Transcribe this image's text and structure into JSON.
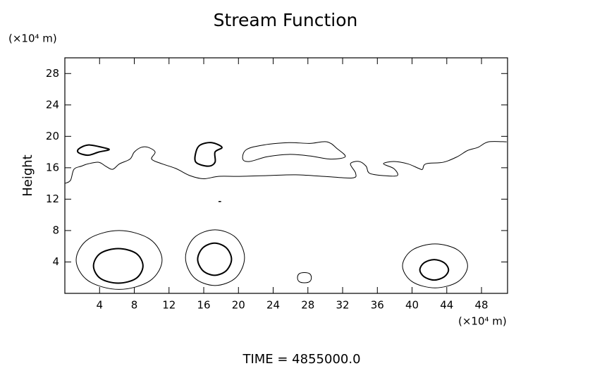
{
  "chart_data": {
    "type": "contour",
    "title": "Stream Function",
    "y_unit": "(×10⁴ m)",
    "y_label": "Height",
    "x_unit": "(×10⁴ m)",
    "footer": "TIME = 4855000.0",
    "xlim": [
      0,
      51
    ],
    "ylim": [
      0,
      30
    ],
    "xticks": [
      4,
      8,
      12,
      16,
      20,
      24,
      28,
      32,
      36,
      40,
      44,
      48
    ],
    "yticks": [
      4,
      8,
      12,
      16,
      20,
      24,
      28
    ],
    "color": "#000000",
    "contours": [
      {
        "closed": false,
        "width": 1,
        "x": [
          0,
          0.65,
          1.05,
          1.9,
          2.7,
          3.9,
          4.7,
          5.5,
          6.3,
          7.5,
          8.0,
          8.8,
          9.6,
          10.4,
          10.0,
          11.2,
          12.8,
          14.4,
          16.0,
          17.7,
          20.1,
          23.3,
          26.6,
          29.8,
          33.1,
          33.5,
          32.9,
          33.9,
          34.7,
          35.1,
          36.7,
          38.3,
          37.9,
          36.7,
          37.9,
          39.5,
          40.8,
          41.2,
          41.6,
          43.6,
          45.2,
          46.4,
          47.6,
          48.8,
          50.9
        ],
        "y": [
          14.0,
          14.4,
          15.8,
          16.2,
          16.5,
          16.7,
          16.2,
          15.8,
          16.5,
          17.1,
          18.0,
          18.6,
          18.6,
          18.0,
          17.1,
          16.5,
          15.9,
          15.0,
          14.6,
          14.9,
          14.9,
          15.0,
          15.1,
          14.9,
          14.7,
          15.3,
          16.5,
          16.8,
          16.2,
          15.3,
          15.0,
          15.0,
          15.9,
          16.5,
          16.8,
          16.5,
          15.9,
          15.8,
          16.5,
          16.7,
          17.4,
          18.2,
          18.6,
          19.3,
          19.3
        ]
      },
      {
        "closed": true,
        "width": 1,
        "x": [
          20.5,
          20.9,
          22.9,
          25.8,
          28.2,
          30.2,
          31.4,
          32.3,
          30.6,
          28.2,
          25.8,
          23.3,
          21.3
        ],
        "y": [
          17.1,
          18.3,
          18.9,
          19.2,
          19.1,
          19.3,
          18.4,
          17.4,
          17.1,
          17.5,
          17.7,
          17.4,
          16.8
        ]
      },
      {
        "closed": true,
        "width": 2,
        "x": [
          1.6,
          2.7,
          4.3,
          5.1,
          3.9,
          2.7,
          1.6
        ],
        "y": [
          18.4,
          18.9,
          18.6,
          18.3,
          18.0,
          17.6,
          17.9
        ]
      },
      {
        "closed": true,
        "width": 2,
        "x": [
          15.1,
          15.6,
          16.9,
          18.1,
          17.3,
          17.3,
          16.5,
          15.1
        ],
        "y": [
          18.0,
          18.9,
          19.2,
          18.6,
          18.0,
          16.7,
          16.2,
          16.7
        ]
      },
      {
        "closed": false,
        "width": 1.5,
        "x": [
          17.7,
          18.0
        ],
        "y": [
          11.7,
          11.7
        ]
      },
      {
        "closed": true,
        "width": 1,
        "x": [
          11.2,
          9.8,
          6.25,
          2.7,
          1.3,
          2.7,
          6.25,
          9.8
        ],
        "y": [
          4.25,
          6.9,
          8.0,
          6.9,
          4.25,
          1.6,
          0.5,
          1.6
        ]
      },
      {
        "closed": true,
        "width": 2,
        "x": [
          9.0,
          8.2,
          6.15,
          4.1,
          3.3,
          4.1,
          6.15,
          8.2
        ],
        "y": [
          3.5,
          5.1,
          5.7,
          5.1,
          3.5,
          1.9,
          1.3,
          1.9
        ]
      },
      {
        "closed": true,
        "width": 1,
        "x": [
          20.7,
          19.7,
          17.3,
          14.9,
          13.9,
          14.9,
          17.3,
          19.7
        ],
        "y": [
          4.55,
          7.1,
          8.1,
          7.1,
          4.55,
          2.0,
          1.0,
          2.0
        ]
      },
      {
        "closed": true,
        "width": 2,
        "x": [
          19.2,
          18.6,
          17.25,
          15.9,
          15.3,
          15.9,
          17.25,
          18.6
        ],
        "y": [
          4.35,
          5.8,
          6.4,
          5.8,
          4.35,
          2.9,
          2.3,
          2.9
        ]
      },
      {
        "closed": true,
        "width": 1,
        "x": [
          28.4,
          28.2,
          27.6,
          27.0,
          26.8,
          27.0,
          27.6,
          28.2
        ],
        "y": [
          2.0,
          2.5,
          2.65,
          2.5,
          2.0,
          1.5,
          1.35,
          1.5
        ]
      },
      {
        "closed": true,
        "width": 1,
        "x": [
          46.4,
          45.3,
          42.65,
          40.0,
          38.9,
          40.0,
          42.65,
          45.3
        ],
        "y": [
          3.5,
          5.5,
          6.3,
          5.5,
          3.5,
          1.5,
          0.7,
          1.5
        ]
      },
      {
        "closed": true,
        "width": 2,
        "x": [
          44.2,
          43.7,
          42.55,
          41.4,
          40.9,
          41.4,
          42.55,
          43.7
        ],
        "y": [
          3.0,
          3.9,
          4.3,
          3.9,
          3.0,
          2.1,
          1.7,
          2.1
        ]
      }
    ]
  }
}
